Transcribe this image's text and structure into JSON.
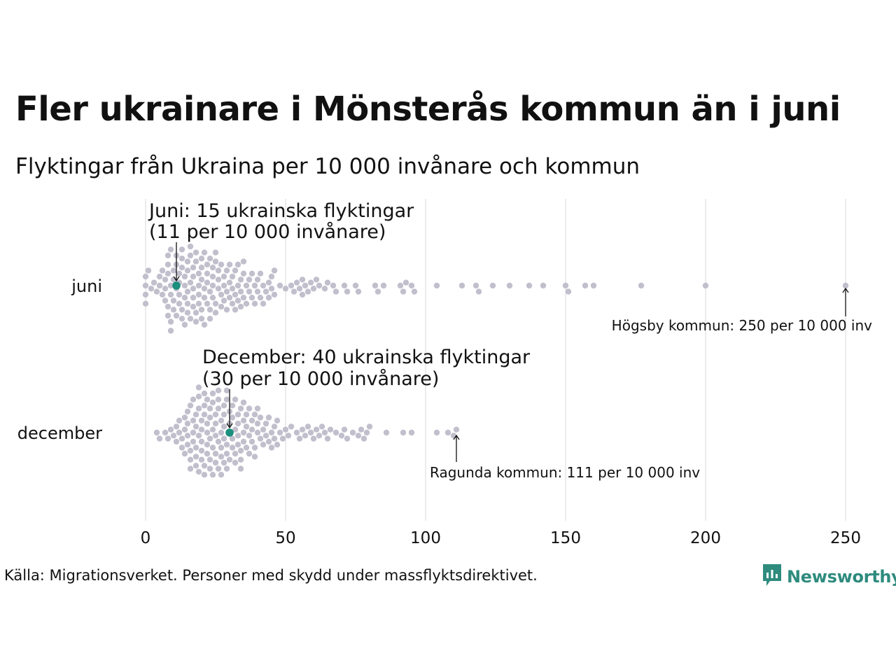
{
  "title": "Fler ukrainare i Mönsterås kommun än i juni",
  "subtitle": "Flyktingar från Ukraina per 10 000 invånare och kommun",
  "source": "Källa: Migrationsverket. Personer med skydd under massflyktsdirektivet.",
  "logo_text": "Newsworthy",
  "colors": {
    "dots": "#c2bfcd",
    "highlight": "#1a8f7e",
    "grid": "#d9d9d9",
    "logo": "#2e8b7e"
  },
  "chart_data": {
    "type": "scatter",
    "subtype": "beeswarm",
    "xlim": [
      0,
      260
    ],
    "xticks": [
      0,
      50,
      100,
      150,
      200,
      250
    ],
    "grid": "vertical",
    "categories": [
      "juni",
      "december"
    ],
    "series": [
      {
        "category": "juni",
        "highlight": {
          "value": 11,
          "label_line1": "Juni: 15 ukrainska flyktingar",
          "label_line2": "(11 per 10 000 invånare)"
        },
        "max_annotation": {
          "value": 250,
          "label": "Högsby kommun: 250 per 10 000 inv"
        },
        "values": [
          0,
          0,
          0,
          0,
          1,
          2,
          3,
          4,
          5,
          5,
          6,
          6,
          7,
          7,
          7,
          8,
          8,
          8,
          8,
          8,
          9,
          9,
          9,
          9,
          9,
          10,
          10,
          10,
          10,
          11,
          11,
          11,
          11,
          12,
          12,
          12,
          12,
          13,
          13,
          13,
          13,
          13,
          14,
          14,
          14,
          14,
          15,
          15,
          15,
          15,
          15,
          16,
          16,
          16,
          16,
          17,
          17,
          17,
          17,
          17,
          18,
          18,
          18,
          18,
          19,
          19,
          19,
          19,
          20,
          20,
          20,
          20,
          20,
          21,
          21,
          21,
          21,
          22,
          22,
          22,
          22,
          23,
          23,
          23,
          23,
          24,
          24,
          24,
          24,
          25,
          25,
          25,
          25,
          26,
          26,
          26,
          27,
          27,
          27,
          28,
          28,
          28,
          29,
          29,
          29,
          30,
          30,
          30,
          31,
          31,
          31,
          32,
          32,
          32,
          33,
          33,
          33,
          34,
          34,
          34,
          35,
          35,
          35,
          36,
          36,
          37,
          37,
          38,
          38,
          39,
          39,
          40,
          40,
          41,
          41,
          42,
          42,
          43,
          44,
          44,
          45,
          45,
          46,
          46,
          48,
          50,
          52,
          53,
          54,
          55,
          56,
          56,
          57,
          58,
          59,
          60,
          61,
          62,
          64,
          65,
          67,
          68,
          71,
          72,
          75,
          76,
          82,
          83,
          85,
          91,
          92,
          93,
          95,
          96,
          104,
          113,
          118,
          119,
          124,
          130,
          137,
          142,
          150,
          151,
          157,
          160,
          177,
          200,
          250
        ]
      },
      {
        "category": "december",
        "highlight": {
          "value": 30,
          "label_line1": "December: 40 ukrainska flyktingar",
          "label_line2": "(30 per 10 000 invånare)"
        },
        "max_annotation": {
          "value": 111,
          "label": "Ragunda kommun: 111 per 10 000 inv"
        },
        "values": [
          4,
          5,
          7,
          8,
          9,
          10,
          11,
          11,
          12,
          12,
          13,
          13,
          14,
          14,
          14,
          15,
          15,
          15,
          15,
          16,
          16,
          16,
          16,
          17,
          17,
          17,
          17,
          18,
          18,
          18,
          18,
          18,
          19,
          19,
          19,
          19,
          19,
          20,
          20,
          20,
          20,
          20,
          21,
          21,
          21,
          21,
          21,
          22,
          22,
          22,
          22,
          22,
          23,
          23,
          23,
          23,
          23,
          24,
          24,
          24,
          24,
          24,
          25,
          25,
          25,
          25,
          25,
          26,
          26,
          26,
          26,
          26,
          27,
          27,
          27,
          27,
          27,
          28,
          28,
          28,
          28,
          28,
          29,
          29,
          29,
          29,
          29,
          30,
          30,
          30,
          30,
          31,
          31,
          31,
          31,
          32,
          32,
          32,
          32,
          33,
          33,
          33,
          33,
          34,
          34,
          34,
          34,
          35,
          35,
          35,
          35,
          36,
          36,
          36,
          37,
          37,
          37,
          38,
          38,
          38,
          39,
          39,
          39,
          40,
          40,
          40,
          41,
          41,
          42,
          42,
          43,
          43,
          44,
          44,
          45,
          45,
          46,
          46,
          47,
          47,
          48,
          49,
          50,
          51,
          52,
          54,
          55,
          56,
          57,
          58,
          59,
          60,
          61,
          62,
          63,
          64,
          65,
          66,
          68,
          70,
          71,
          72,
          74,
          76,
          77,
          78,
          79,
          80,
          86,
          92,
          95,
          104,
          108,
          110,
          111
        ]
      }
    ]
  }
}
